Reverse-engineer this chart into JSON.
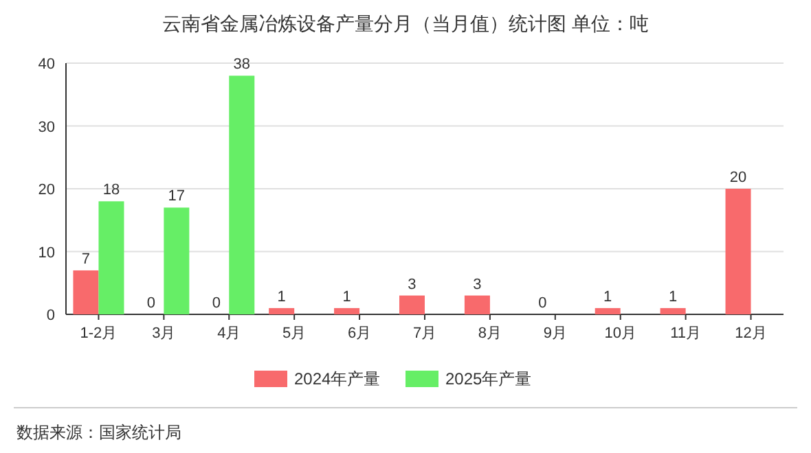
{
  "chart_data": {
    "type": "bar",
    "title": "云南省金属冶炼设备产量分月（当月值）统计图 单位：吨",
    "categories": [
      "1-2月",
      "3月",
      "4月",
      "5月",
      "6月",
      "7月",
      "8月",
      "9月",
      "10月",
      "11月",
      "12月"
    ],
    "series": [
      {
        "name": "2024年产量",
        "color": "#f86a6c",
        "values": [
          7,
          0,
          0,
          1,
          1,
          3,
          3,
          0,
          1,
          1,
          20
        ]
      },
      {
        "name": "2025年产量",
        "color": "#66ee66",
        "values": [
          18,
          17,
          38,
          null,
          null,
          null,
          null,
          null,
          null,
          null,
          null
        ]
      }
    ],
    "ylim": [
      0,
      40
    ],
    "yticks": [
      0,
      10,
      20,
      30,
      40
    ],
    "grid": "y",
    "legend": "bottom",
    "data_labels": true,
    "annotations": [
      "数据来源：国家统计局"
    ]
  }
}
